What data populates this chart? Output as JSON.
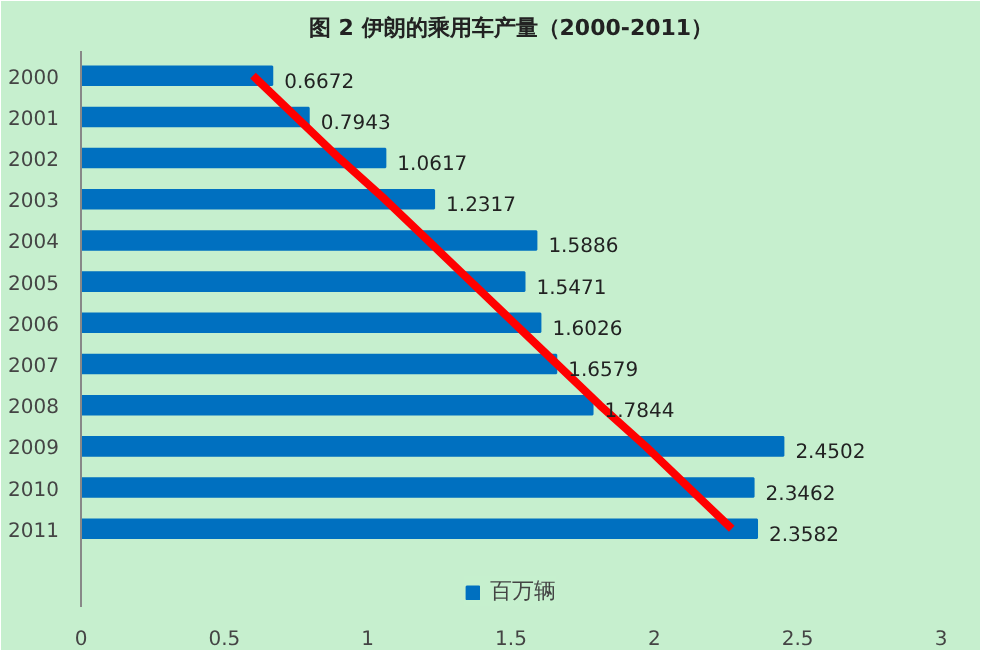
{
  "chart_data": {
    "type": "bar",
    "orientation": "horizontal",
    "title": "图 2 伊朗的乘用车产量（2000-2011）",
    "categories": [
      "2000",
      "2001",
      "2002",
      "2003",
      "2004",
      "2005",
      "2006",
      "2007",
      "2008",
      "2009",
      "2010",
      "2011"
    ],
    "series": [
      {
        "name": "百万辆",
        "color": "#0070c0",
        "values": [
          0.6672,
          0.7943,
          1.0617,
          1.2317,
          1.5886,
          1.5471,
          1.6026,
          1.6579,
          1.7844,
          2.4502,
          2.3462,
          2.3582
        ]
      },
      {
        "type": "line",
        "color": "#ff0000",
        "values": [
          0.6,
          0.75,
          0.9,
          1.06,
          1.21,
          1.36,
          1.51,
          1.66,
          1.81,
          1.97,
          2.12,
          2.27
        ],
        "value_labels": [
          null,
          null,
          null,
          null,
          null,
          null,
          null,
          null,
          null,
          null,
          null,
          null
        ]
      }
    ],
    "data_labels": true,
    "xlim": [
      0,
      3
    ],
    "xticks": [
      0,
      0.5,
      1,
      1.5,
      2,
      2.5,
      3
    ],
    "legend": "bottom"
  }
}
